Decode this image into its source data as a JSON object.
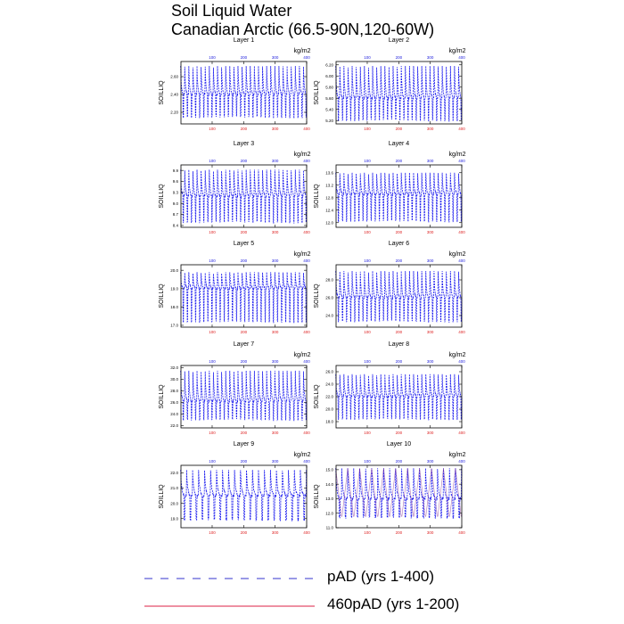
{
  "title": {
    "line1": "Soil Liquid Water",
    "line2": "Canadian Arctic (66.5-90N,120-60W)"
  },
  "colors": {
    "series_pad": "#1a1aee",
    "series_460pad": "#dd2244",
    "top_axis": "#2222dd",
    "bottom_axis": "#dd2222"
  },
  "legend": [
    {
      "label": "pAD (yrs 1-400)",
      "style": "dashed",
      "color": "#3333cc"
    },
    {
      "label": "460pAD (yrs 1-200)",
      "style": "solid",
      "color": "#dd2244"
    }
  ],
  "chart_data": [
    {
      "type": "line",
      "title": "Layer 1",
      "ylabel": "SOILLIQ",
      "top_unit": "kg/m2",
      "ylim": [
        2.07,
        2.77
      ],
      "yticks": [
        2.2,
        2.4,
        2.6
      ],
      "yticklabels": [
        "2.20",
        "2.40",
        "2.60"
      ],
      "top_xticks": [
        100,
        200,
        300,
        400
      ],
      "bottom_xticks": [
        100,
        200,
        300,
        400
      ],
      "xlim_top": [
        1,
        400
      ],
      "xlim_bottom": [
        1,
        400
      ],
      "series": [
        {
          "period": 13,
          "ymin": 2.13,
          "ymax": 2.72,
          "base": 2.4
        }
      ]
    },
    {
      "type": "line",
      "title": "Layer 2",
      "ylabel": "SOILLIQ",
      "top_unit": "kg/m2",
      "ylim": [
        5.14,
        6.26
      ],
      "yticks": [
        5.2,
        5.4,
        5.6,
        5.8,
        6.0,
        6.2
      ],
      "yticklabels": [
        "5.20",
        "5.40",
        "5.60",
        "5.80",
        "6.00",
        "6.20"
      ],
      "top_xticks": [
        100,
        200,
        300,
        400
      ],
      "bottom_xticks": [
        100,
        200,
        300,
        400
      ],
      "xlim_top": [
        1,
        400
      ],
      "xlim_bottom": [
        1,
        400
      ],
      "series": [
        {
          "period": 13,
          "ymin": 5.18,
          "ymax": 6.18,
          "base": 5.6
        }
      ]
    },
    {
      "type": "line",
      "title": "Layer 3",
      "ylabel": "SOILLIQ",
      "top_unit": "kg/m2",
      "ylim": [
        8.35,
        10.05
      ],
      "yticks": [
        8.4,
        8.7,
        9.0,
        9.3,
        9.6,
        9.9
      ],
      "yticklabels": [
        "8.4",
        "8.7",
        "9.0",
        "9.3",
        "9.6",
        "9.9"
      ],
      "top_xticks": [
        100,
        200,
        300,
        400
      ],
      "bottom_xticks": [
        100,
        200,
        300,
        400
      ],
      "xlim_top": [
        1,
        400
      ],
      "xlim_bottom": [
        1,
        400
      ],
      "series": [
        {
          "period": 13,
          "ymin": 8.45,
          "ymax": 9.92,
          "base": 9.2
        }
      ]
    },
    {
      "type": "line",
      "title": "Layer 4",
      "ylabel": "SOILLIQ",
      "top_unit": "kg/m2",
      "ylim": [
        11.85,
        13.85
      ],
      "yticks": [
        12.0,
        12.4,
        12.8,
        13.2,
        13.6
      ],
      "yticklabels": [
        "12.0",
        "12.4",
        "12.8",
        "13.2",
        "13.6"
      ],
      "top_xticks": [
        100,
        200,
        300,
        400
      ],
      "bottom_xticks": [
        100,
        200,
        300,
        400
      ],
      "xlim_top": [
        1,
        400
      ],
      "xlim_bottom": [
        1,
        400
      ],
      "series": [
        {
          "period": 13,
          "ymin": 12.0,
          "ymax": 13.6,
          "base": 12.9
        }
      ]
    },
    {
      "type": "line",
      "title": "Layer 5",
      "ylabel": "SOILLIQ",
      "top_unit": "kg/m2",
      "ylim": [
        16.9,
        20.3
      ],
      "yticks": [
        17.0,
        18.0,
        19.0,
        20.0
      ],
      "yticklabels": [
        "17.0",
        "18.0",
        "19.0",
        "20.0"
      ],
      "top_xticks": [
        100,
        200,
        300,
        400
      ],
      "bottom_xticks": [
        100,
        200,
        300,
        400
      ],
      "xlim_top": [
        1,
        400
      ],
      "xlim_bottom": [
        1,
        400
      ],
      "series": [
        {
          "period": 13,
          "ymin": 17.1,
          "ymax": 19.9,
          "base": 19.0
        }
      ]
    },
    {
      "type": "line",
      "title": "Layer 6",
      "ylabel": "SOILLIQ",
      "top_unit": "kg/m2",
      "ylim": [
        22.7,
        29.7
      ],
      "yticks": [
        24.0,
        26.0,
        28.0
      ],
      "yticklabels": [
        "24.0",
        "26.0",
        "28.0"
      ],
      "top_xticks": [
        100,
        200,
        300,
        400
      ],
      "bottom_xticks": [
        100,
        200,
        300,
        400
      ],
      "xlim_top": [
        1,
        400
      ],
      "xlim_bottom": [
        1,
        400
      ],
      "series": [
        {
          "period": 13,
          "ymin": 23.2,
          "ymax": 29.0,
          "base": 26.0
        }
      ]
    },
    {
      "type": "line",
      "title": "Layer 7",
      "ylabel": "SOILLIQ",
      "top_unit": "kg/m2",
      "ylim": [
        21.6,
        32.4
      ],
      "yticks": [
        22.0,
        24.0,
        26.0,
        28.0,
        30.0,
        32.0
      ],
      "yticklabels": [
        "22.0",
        "24.0",
        "26.0",
        "28.0",
        "30.0",
        "32.0"
      ],
      "top_xticks": [
        100,
        200,
        300,
        400
      ],
      "bottom_xticks": [
        100,
        200,
        300,
        400
      ],
      "xlim_top": [
        1,
        400
      ],
      "xlim_bottom": [
        1,
        400
      ],
      "series": [
        {
          "period": 13,
          "ymin": 22.8,
          "ymax": 31.5,
          "base": 26.2
        }
      ]
    },
    {
      "type": "line",
      "title": "Layer 8",
      "ylabel": "SOILLIQ",
      "top_unit": "kg/m2",
      "ylim": [
        17.0,
        27.0
      ],
      "yticks": [
        18.0,
        20.0,
        22.0,
        24.0,
        26.0
      ],
      "yticklabels": [
        "18.0",
        "20.0",
        "22.0",
        "24.0",
        "26.0"
      ],
      "top_xticks": [
        100,
        200,
        300,
        400
      ],
      "bottom_xticks": [
        100,
        200,
        300,
        400
      ],
      "xlim_top": [
        1,
        400
      ],
      "xlim_bottom": [
        1,
        400
      ],
      "series": [
        {
          "period": 13,
          "ymin": 18.2,
          "ymax": 25.6,
          "base": 22.0
        }
      ]
    },
    {
      "type": "line",
      "title": "Layer 9",
      "ylabel": "SOILLIQ",
      "top_unit": "kg/m2",
      "ylim": [
        18.4,
        22.5
      ],
      "yticks": [
        19.0,
        20.0,
        21.0,
        22.0
      ],
      "yticklabels": [
        "19.0",
        "20.0",
        "21.0",
        "22.0"
      ],
      "top_xticks": [
        100,
        200,
        300,
        400
      ],
      "bottom_xticks": [
        100,
        200,
        300,
        400
      ],
      "xlim_top": [
        1,
        400
      ],
      "xlim_bottom": [
        1,
        400
      ],
      "series": [
        {
          "period": 19,
          "ymin": 18.8,
          "ymax": 22.2,
          "base": 20.5
        }
      ]
    },
    {
      "type": "line",
      "title": "Layer 10",
      "ylabel": "SOILLIQ",
      "top_unit": "kg/m2",
      "ylim": [
        11.0,
        15.3
      ],
      "yticks": [
        11.0,
        12.0,
        13.0,
        14.0,
        15.0
      ],
      "yticklabels": [
        "11.0",
        "12.0",
        "13.0",
        "14.0",
        "15.0"
      ],
      "top_xticks": [
        100,
        200,
        300,
        400
      ],
      "bottom_xticks": [
        100,
        200,
        300,
        400
      ],
      "xlim_top": [
        1,
        400
      ],
      "xlim_bottom": [
        1,
        400
      ],
      "series": [
        {
          "period": 19,
          "ymin": 11.6,
          "ymax": 15.1,
          "base": 13.0
        }
      ]
    }
  ]
}
